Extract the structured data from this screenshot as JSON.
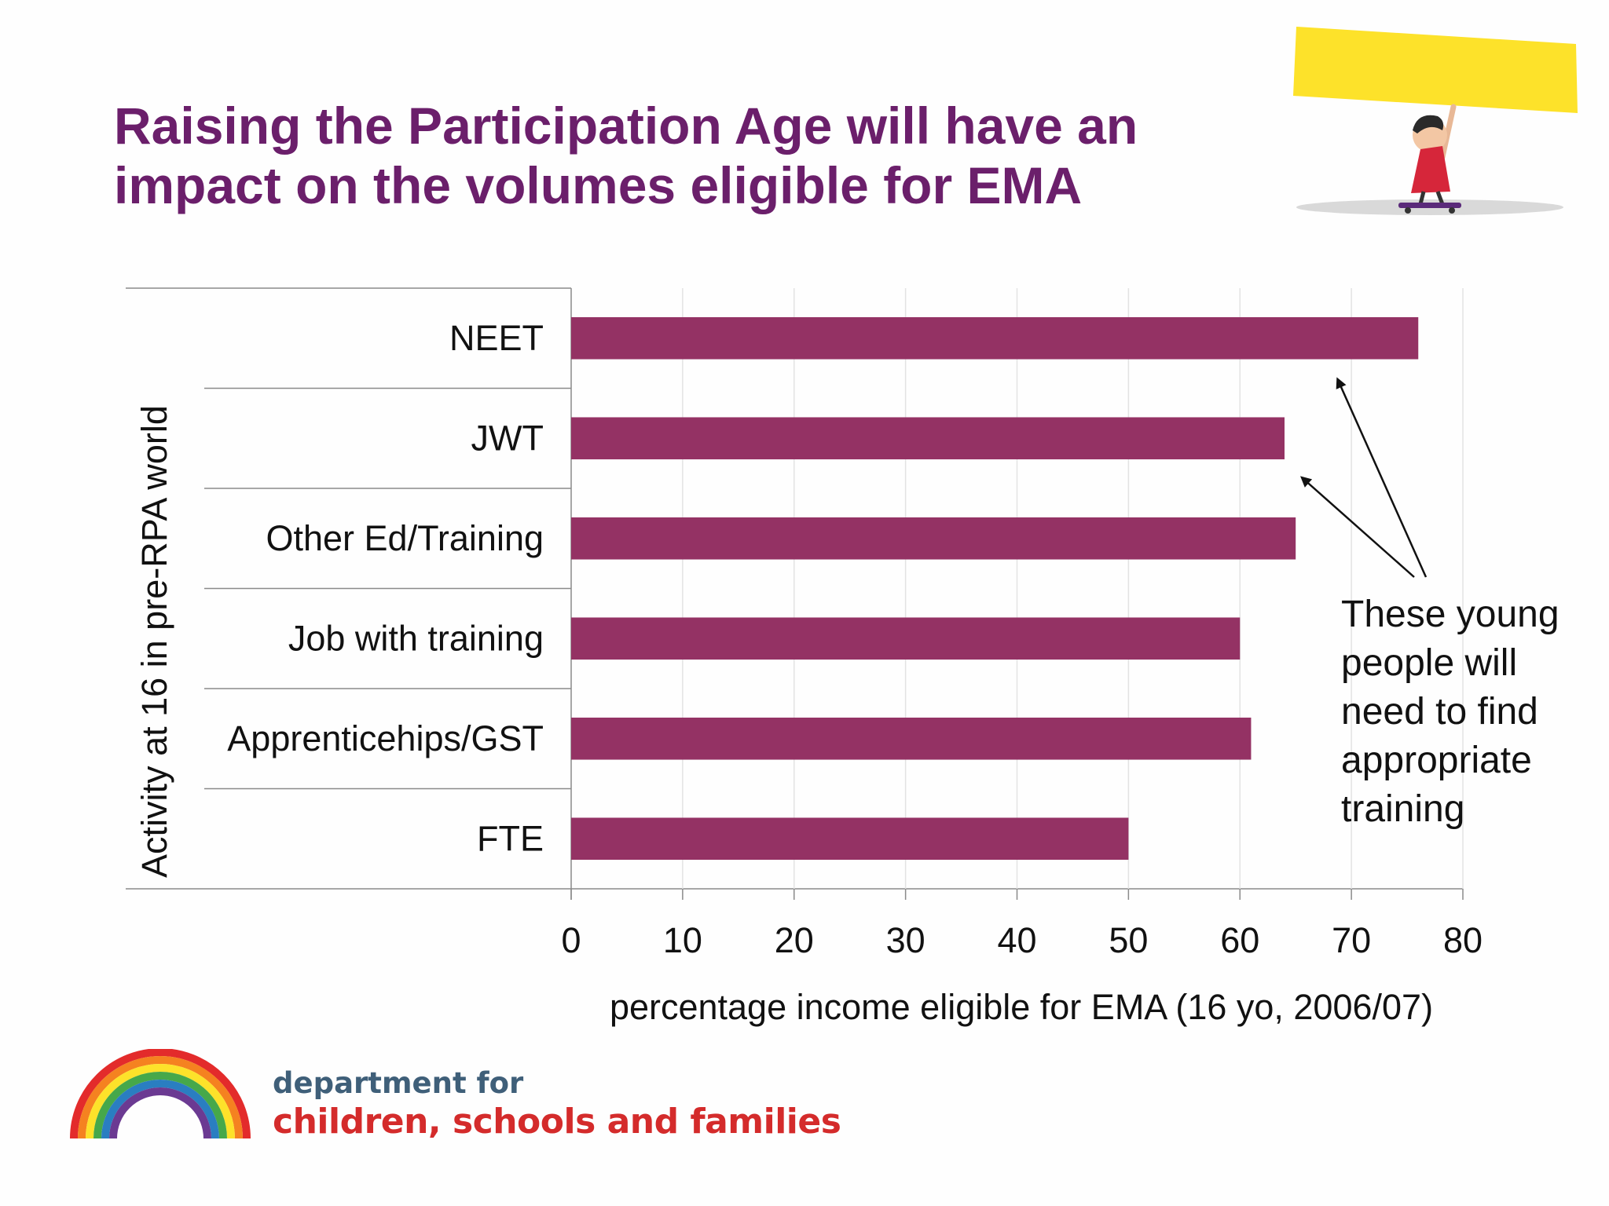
{
  "slide": {
    "title_line1": "Raising the Participation Age will have an",
    "title_line2": "impact on the volumes eligible for EMA",
    "annotation_lines": [
      "These young",
      "people will",
      "need to find",
      "appropriate",
      "training"
    ],
    "logo_line1": "department for",
    "logo_line2": "children, schools and families"
  },
  "colors": {
    "title": "#6b1f6b",
    "bar": "#943264",
    "grid": "#e3e3e3",
    "logo_blue": "#3f5f79",
    "logo_red": "#d42b2b",
    "banner_yellow": "#fde22a"
  },
  "icons": {
    "logo": "rainbow-logo",
    "mascot": "child-holding-banner-on-skateboard"
  },
  "chart_data": {
    "type": "bar",
    "orientation": "horizontal",
    "categories": [
      "NEET",
      "JWT",
      "Other Ed/Training",
      "Job with training",
      "Apprenticehips/GST",
      "FTE"
    ],
    "values": [
      76,
      64,
      65,
      60,
      61,
      50
    ],
    "xlabel": "percentage income eligible for EMA (16 yo, 2006/07)",
    "ylabel": "Activity at 16 in pre-RPA world",
    "xlim": [
      0,
      80
    ],
    "xticks": [
      "0",
      "10",
      "20",
      "30",
      "40",
      "50",
      "60",
      "70",
      "80"
    ],
    "grid": "vertical",
    "legend": "none"
  }
}
